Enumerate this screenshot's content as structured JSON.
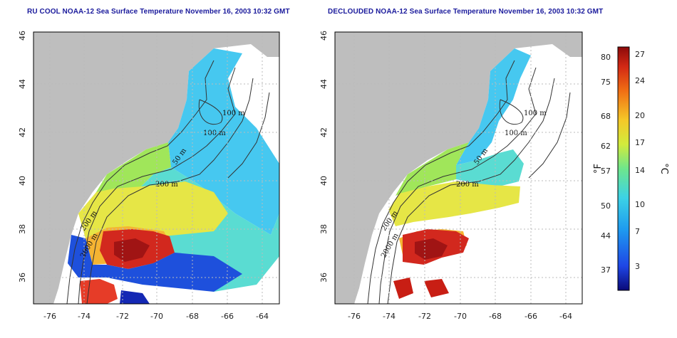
{
  "panels": [
    {
      "title": "RU COOL NOAA-12 Sea Surface Temperature November 16, 2003 10:32 GMT",
      "contours": [
        "100 m",
        "100 m",
        "50 m",
        "200 m",
        "200 m",
        "2000 m"
      ]
    },
    {
      "title": "DECLOUDED NOAA-12 Sea Surface Temperature November 16, 2003 10:32 GMT",
      "contours": [
        "100 m",
        "100 m",
        "50 m",
        "200 m",
        "200 m",
        "2000 m"
      ]
    }
  ],
  "axes": {
    "lat_ticks": [
      "46",
      "44",
      "42",
      "40",
      "38",
      "36"
    ],
    "lon_ticks": [
      "-76",
      "-74",
      "-72",
      "-70",
      "-68",
      "-66",
      "-64"
    ]
  },
  "colorbar": {
    "fahrenheit_ticks": [
      "80",
      "75",
      "68",
      "62",
      "57",
      "50",
      "44",
      "37"
    ],
    "celsius_ticks": [
      "27",
      "24",
      "20",
      "17",
      "14",
      "10",
      "7",
      "3"
    ],
    "fahrenheit_label": "°F",
    "celsius_label": "°C"
  },
  "colors": {
    "land": "#bebebe",
    "title": "#1a1a9c",
    "cold": "#1e46c8",
    "mid": "#46d2c8",
    "warm": "#e6e63c",
    "hot": "#c81e14"
  }
}
